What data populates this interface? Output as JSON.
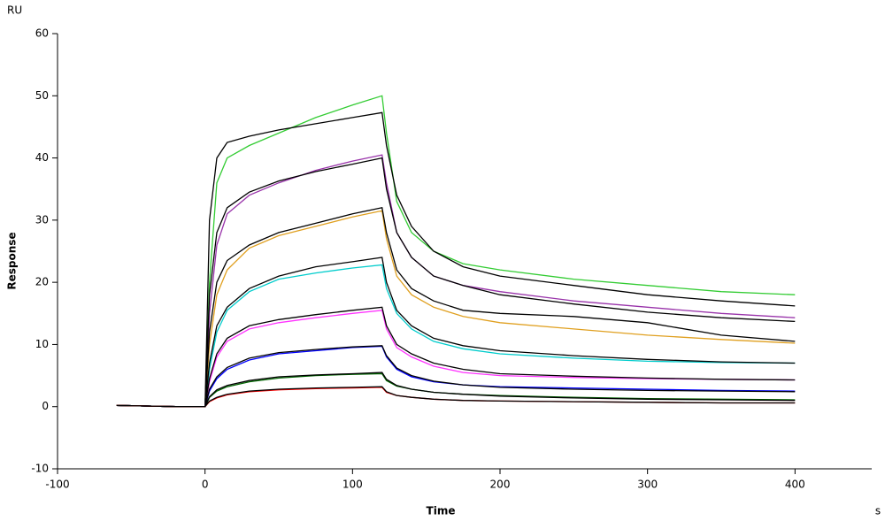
{
  "chart_data": {
    "type": "line",
    "y_unit": "RU",
    "ylabel": "Response",
    "xlabel": "Time",
    "x_unit": "s",
    "xlim": [
      -100,
      452
    ],
    "ylim": [
      -10,
      60
    ],
    "xticks": [
      -100,
      0,
      100,
      200,
      300,
      400
    ],
    "yticks": [
      -10,
      0,
      10,
      20,
      30,
      40,
      50,
      60
    ],
    "x": [
      -60,
      -40,
      -20,
      0,
      3,
      8,
      15,
      30,
      50,
      75,
      100,
      120,
      123,
      130,
      140,
      155,
      175,
      200,
      250,
      300,
      350,
      400
    ],
    "series": [
      {
        "color": "#33cc33",
        "values": [
          0.2,
          0.1,
          0,
          0,
          20,
          36,
          40,
          42,
          44,
          46.5,
          48.5,
          50,
          44,
          33,
          28,
          25,
          23,
          22,
          20.5,
          19.5,
          18.5,
          18
        ]
      },
      {
        "color": "#000000",
        "values": [
          0.2,
          0.1,
          0,
          0,
          30,
          40,
          42.5,
          43.5,
          44.5,
          45.5,
          46.5,
          47.3,
          42,
          34,
          29,
          25,
          22.5,
          21,
          19.5,
          18,
          17,
          16.2
        ]
      },
      {
        "color": "#9933aa",
        "values": [
          0.2,
          0.1,
          0,
          0,
          15,
          26,
          31,
          34,
          36,
          38,
          39.5,
          40.5,
          36,
          28,
          24,
          21,
          19.5,
          18.5,
          17,
          16,
          15,
          14.3
        ]
      },
      {
        "color": "#000000",
        "values": [
          0.2,
          0.1,
          0,
          0,
          18,
          28,
          32,
          34.5,
          36.3,
          37.8,
          39,
          40,
          35,
          28,
          24,
          21,
          19.5,
          18,
          16.5,
          15.2,
          14.3,
          13.7
        ]
      },
      {
        "color": "#e0a020",
        "values": [
          0.2,
          0.1,
          0,
          0,
          10,
          18,
          22,
          25.5,
          27.5,
          29,
          30.5,
          31.5,
          27,
          21,
          18,
          16,
          14.5,
          13.5,
          12.5,
          11.5,
          10.8,
          10.2
        ]
      },
      {
        "color": "#000000",
        "values": [
          0.2,
          0.1,
          0,
          0,
          12,
          20,
          23.5,
          26,
          28,
          29.5,
          31,
          32,
          28,
          22,
          19,
          17,
          15.5,
          15,
          14.5,
          13.5,
          11.5,
          10.5
        ]
      },
      {
        "color": "#00cccc",
        "values": [
          0.2,
          0.1,
          0,
          0,
          6,
          12,
          15.5,
          18.5,
          20.5,
          21.5,
          22.3,
          22.8,
          19,
          15,
          12.5,
          10.5,
          9.3,
          8.5,
          7.8,
          7.3,
          7.1,
          7
        ]
      },
      {
        "color": "#000000",
        "values": [
          0.2,
          0.1,
          0,
          0,
          7,
          13,
          16,
          19,
          21,
          22.5,
          23.3,
          24,
          20,
          15.5,
          13,
          11,
          9.8,
          9,
          8.2,
          7.6,
          7.2,
          7
        ]
      },
      {
        "color": "#ff33ff",
        "values": [
          0.2,
          0.1,
          0,
          0,
          4,
          8,
          10.5,
          12.5,
          13.5,
          14.3,
          15,
          15.5,
          12.5,
          9.5,
          8,
          6.5,
          5.5,
          5,
          4.7,
          4.5,
          4.4,
          4.3
        ]
      },
      {
        "color": "#000000",
        "values": [
          0.2,
          0.1,
          0,
          0,
          4.5,
          8.5,
          11,
          13,
          14,
          14.8,
          15.5,
          16,
          13,
          10,
          8.5,
          7,
          6,
          5.3,
          4.9,
          4.6,
          4.4,
          4.3
        ]
      },
      {
        "color": "#0000ff",
        "values": [
          0.2,
          0.1,
          0,
          0,
          2.5,
          4.5,
          6,
          7.5,
          8.5,
          9,
          9.5,
          9.7,
          8,
          6,
          4.8,
          4,
          3.5,
          3.2,
          3,
          2.8,
          2.6,
          2.5
        ]
      },
      {
        "color": "#000000",
        "values": [
          0.2,
          0.1,
          0,
          0,
          2.8,
          4.8,
          6.3,
          7.8,
          8.7,
          9.2,
          9.6,
          9.8,
          8.2,
          6.2,
          5,
          4.1,
          3.5,
          3.1,
          2.8,
          2.6,
          2.5,
          2.4
        ]
      },
      {
        "color": "#006600",
        "values": [
          0.2,
          0.1,
          0,
          0,
          1.5,
          2.5,
          3.2,
          4,
          4.6,
          5,
          5.2,
          5.3,
          4.2,
          3.3,
          2.8,
          2.3,
          2,
          1.8,
          1.5,
          1.3,
          1.2,
          1.1
        ]
      },
      {
        "color": "#000000",
        "values": [
          0.2,
          0.1,
          0,
          0,
          1.6,
          2.7,
          3.4,
          4.2,
          4.8,
          5.1,
          5.3,
          5.5,
          4.4,
          3.4,
          2.8,
          2.3,
          2,
          1.7,
          1.4,
          1.2,
          1.1,
          1
        ]
      },
      {
        "color": "#ff0000",
        "values": [
          0.2,
          0.1,
          0,
          0,
          0.8,
          1.4,
          1.9,
          2.4,
          2.7,
          2.9,
          3,
          3.1,
          2.3,
          1.8,
          1.5,
          1.2,
          1,
          0.9,
          0.8,
          0.7,
          0.6,
          0.6
        ]
      },
      {
        "color": "#000000",
        "values": [
          0.2,
          0.1,
          0,
          0,
          0.9,
          1.5,
          2,
          2.5,
          2.8,
          3,
          3.1,
          3.2,
          2.4,
          1.8,
          1.5,
          1.2,
          1,
          0.9,
          0.8,
          0.7,
          0.6,
          0.6
        ]
      }
    ]
  }
}
